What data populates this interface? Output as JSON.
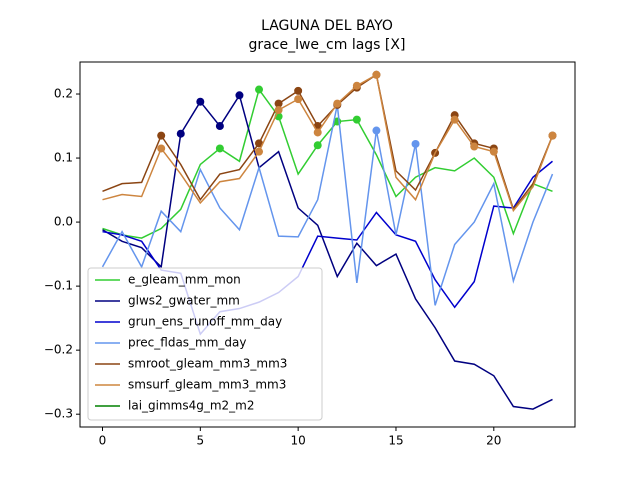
{
  "chart_data": {
    "type": "line",
    "title": "LAGUNA DEL BAYO",
    "subtitle": "grace_lwe_cm lags [X]",
    "x": [
      0,
      1,
      2,
      3,
      4,
      5,
      6,
      7,
      8,
      9,
      10,
      11,
      12,
      13,
      14,
      15,
      16,
      17,
      18,
      19,
      20,
      21,
      22,
      23
    ],
    "xlim": [
      -1.15,
      24.15
    ],
    "ylim": [
      -0.32,
      0.25
    ],
    "xticks": [
      0,
      5,
      10,
      15,
      20
    ],
    "yticks": [
      {
        "value": -0.3,
        "label": "−0.3"
      },
      {
        "value": -0.2,
        "label": "−0.2"
      },
      {
        "value": -0.1,
        "label": "−0.1"
      },
      {
        "value": 0,
        "label": "0.0"
      },
      {
        "value": 0.1,
        "label": "0.1"
      },
      {
        "value": 0.2,
        "label": "0.2"
      }
    ],
    "legend": "lower left",
    "series": [
      {
        "name": "e_gleam_mm_mon",
        "color": "#32cd32",
        "values": [
          -0.01,
          -0.02,
          -0.025,
          -0.01,
          0.02,
          0.09,
          0.115,
          0.095,
          0.207,
          0.165,
          0.075,
          0.12,
          0.157,
          0.16,
          0.105,
          0.04,
          0.07,
          0.085,
          0.08,
          0.1,
          0.07,
          -0.018,
          0.06,
          0.048
        ],
        "highlighted": [
          6,
          8,
          9,
          11,
          12,
          13
        ]
      },
      {
        "name": "glws2_gwater_mm",
        "color": "#000080",
        "values": [
          -0.012,
          -0.03,
          -0.04,
          -0.07,
          0.138,
          0.188,
          0.15,
          0.198,
          0.085,
          0.11,
          0.022,
          -0.005,
          -0.085,
          -0.033,
          -0.068,
          -0.05,
          -0.12,
          -0.165,
          -0.217,
          -0.222,
          -0.24,
          -0.288,
          -0.292,
          -0.277
        ],
        "highlighted": [
          4,
          5,
          6,
          7
        ]
      },
      {
        "name": "grun_ens_runoff_mm_day",
        "color": "#0000cd",
        "values": [
          -0.015,
          -0.02,
          -0.03,
          -0.075,
          -0.08,
          -0.175,
          -0.14,
          -0.135,
          -0.125,
          -0.11,
          -0.085,
          -0.022,
          -0.025,
          -0.028,
          0.015,
          -0.02,
          -0.03,
          -0.09,
          -0.133,
          -0.093,
          0.025,
          0.022,
          0.07,
          0.095
        ],
        "highlighted": []
      },
      {
        "name": "prec_fldas_mm_day",
        "color": "#6495ed",
        "values": [
          -0.07,
          -0.015,
          -0.07,
          0.017,
          -0.015,
          0.082,
          0.022,
          -0.012,
          0.085,
          -0.022,
          -0.023,
          0.035,
          0.183,
          -0.095,
          0.143,
          -0.02,
          0.122,
          -0.13,
          -0.035,
          0.0,
          0.06,
          -0.092,
          0.0,
          0.075
        ],
        "highlighted": [
          12,
          14,
          16
        ]
      },
      {
        "name": "smroot_gleam_mm3_mm3",
        "color": "#8b4513",
        "values": [
          0.048,
          0.06,
          0.062,
          0.135,
          0.09,
          0.035,
          0.075,
          0.082,
          0.123,
          0.185,
          0.205,
          0.15,
          0.183,
          0.21,
          0.23,
          0.08,
          0.05,
          0.108,
          0.167,
          0.123,
          0.115,
          0.02,
          0.06,
          0.135
        ],
        "highlighted": [
          3,
          8,
          9,
          10,
          11,
          12,
          13,
          14,
          17,
          18,
          19,
          20,
          23
        ]
      },
      {
        "name": "smsurf_gleam_mm3_mm3",
        "color": "#cd853f",
        "values": [
          0.035,
          0.043,
          0.04,
          0.115,
          0.075,
          0.03,
          0.063,
          0.068,
          0.11,
          0.175,
          0.192,
          0.14,
          0.185,
          0.213,
          0.23,
          0.07,
          0.035,
          0.108,
          0.16,
          0.118,
          0.11,
          0.018,
          0.055,
          0.135
        ],
        "highlighted": [
          3,
          8,
          9,
          10,
          11,
          12,
          13,
          14,
          18,
          19,
          20,
          23
        ]
      },
      {
        "name": "lai_gimms4g_m2_m2",
        "color": "#008000",
        "values": [
          null,
          null,
          null,
          null,
          null,
          null,
          null,
          null,
          null,
          null,
          null,
          null,
          null,
          null,
          null,
          null,
          null,
          null,
          null,
          null,
          null,
          null,
          null,
          null
        ],
        "highlighted": []
      }
    ]
  }
}
